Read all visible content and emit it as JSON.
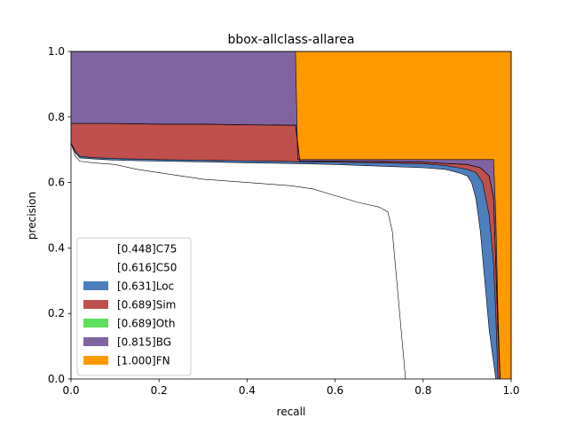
{
  "chart_data": {
    "type": "area",
    "title": "bbox-allclass-allarea",
    "xlabel": "recall",
    "ylabel": "precision",
    "xlim": [
      0,
      1
    ],
    "ylim": [
      0,
      1
    ],
    "x_ticks": [
      "0.0",
      "0.2",
      "0.4",
      "0.6",
      "0.8",
      "1.0"
    ],
    "y_ticks": [
      "0.0",
      "0.2",
      "0.4",
      "0.6",
      "0.8",
      "1.0"
    ],
    "grid": false,
    "legend_position": "lower-left",
    "series": [
      {
        "name": "[0.448]C75",
        "color": "#ffffff",
        "points": [
          [
            0.0,
            0.72
          ],
          [
            0.01,
            0.68
          ],
          [
            0.02,
            0.665
          ],
          [
            0.05,
            0.66
          ],
          [
            0.1,
            0.655
          ],
          [
            0.15,
            0.64
          ],
          [
            0.2,
            0.63
          ],
          [
            0.3,
            0.61
          ],
          [
            0.4,
            0.6
          ],
          [
            0.5,
            0.59
          ],
          [
            0.55,
            0.58
          ],
          [
            0.6,
            0.56
          ],
          [
            0.65,
            0.54
          ],
          [
            0.7,
            0.525
          ],
          [
            0.72,
            0.51
          ],
          [
            0.73,
            0.45
          ],
          [
            0.74,
            0.3
          ],
          [
            0.75,
            0.15
          ],
          [
            0.76,
            0.0
          ]
        ]
      },
      {
        "name": "[0.616]C50",
        "color": "#ffffff",
        "points": [
          [
            0.0,
            0.72
          ],
          [
            0.01,
            0.69
          ],
          [
            0.02,
            0.675
          ],
          [
            0.05,
            0.672
          ],
          [
            0.1,
            0.668
          ],
          [
            0.2,
            0.665
          ],
          [
            0.3,
            0.663
          ],
          [
            0.4,
            0.66
          ],
          [
            0.5,
            0.658
          ],
          [
            0.6,
            0.655
          ],
          [
            0.7,
            0.65
          ],
          [
            0.8,
            0.645
          ],
          [
            0.85,
            0.64
          ],
          [
            0.88,
            0.63
          ],
          [
            0.9,
            0.62
          ],
          [
            0.91,
            0.6
          ],
          [
            0.92,
            0.55
          ],
          [
            0.93,
            0.45
          ],
          [
            0.94,
            0.3
          ],
          [
            0.95,
            0.15
          ],
          [
            0.96,
            0.05
          ],
          [
            0.965,
            0.0
          ]
        ]
      },
      {
        "name": "[0.631]Loc",
        "color": "#4c7fbe",
        "points": [
          [
            0.0,
            0.72
          ],
          [
            0.01,
            0.695
          ],
          [
            0.02,
            0.68
          ],
          [
            0.05,
            0.676
          ],
          [
            0.1,
            0.673
          ],
          [
            0.2,
            0.67
          ],
          [
            0.3,
            0.668
          ],
          [
            0.4,
            0.666
          ],
          [
            0.5,
            0.664
          ],
          [
            0.52,
            0.663
          ],
          [
            0.6,
            0.662
          ],
          [
            0.7,
            0.66
          ],
          [
            0.8,
            0.657
          ],
          [
            0.85,
            0.652
          ],
          [
            0.88,
            0.645
          ],
          [
            0.9,
            0.64
          ],
          [
            0.92,
            0.63
          ],
          [
            0.935,
            0.6
          ],
          [
            0.95,
            0.5
          ],
          [
            0.96,
            0.35
          ],
          [
            0.965,
            0.2
          ],
          [
            0.97,
            0.0
          ]
        ]
      },
      {
        "name": "[0.689]Sim",
        "color": "#c0504d",
        "points": [
          [
            0.0,
            0.78
          ],
          [
            0.1,
            0.78
          ],
          [
            0.2,
            0.778
          ],
          [
            0.3,
            0.778
          ],
          [
            0.4,
            0.776
          ],
          [
            0.51,
            0.775
          ],
          [
            0.52,
            0.665
          ],
          [
            0.6,
            0.665
          ],
          [
            0.7,
            0.664
          ],
          [
            0.8,
            0.662
          ],
          [
            0.85,
            0.658
          ],
          [
            0.9,
            0.655
          ],
          [
            0.93,
            0.645
          ],
          [
            0.95,
            0.62
          ],
          [
            0.96,
            0.55
          ],
          [
            0.965,
            0.35
          ],
          [
            0.97,
            0.15
          ],
          [
            0.975,
            0.0
          ]
        ]
      },
      {
        "name": "[0.689]Oth",
        "color": "#5ce05c",
        "points": [
          [
            0.0,
            0.78
          ],
          [
            0.1,
            0.78
          ],
          [
            0.2,
            0.778
          ],
          [
            0.3,
            0.778
          ],
          [
            0.4,
            0.776
          ],
          [
            0.51,
            0.775
          ],
          [
            0.52,
            0.665
          ],
          [
            0.6,
            0.665
          ],
          [
            0.7,
            0.664
          ],
          [
            0.8,
            0.662
          ],
          [
            0.85,
            0.658
          ],
          [
            0.9,
            0.655
          ],
          [
            0.93,
            0.645
          ],
          [
            0.95,
            0.62
          ],
          [
            0.96,
            0.55
          ],
          [
            0.965,
            0.35
          ],
          [
            0.97,
            0.15
          ],
          [
            0.975,
            0.0
          ]
        ]
      },
      {
        "name": "[0.815]BG",
        "color": "#8064a2",
        "points": [
          [
            0.0,
            1.0
          ],
          [
            0.51,
            1.0
          ],
          [
            0.515,
            0.67
          ],
          [
            0.6,
            0.67
          ],
          [
            0.7,
            0.67
          ],
          [
            0.8,
            0.67
          ],
          [
            0.9,
            0.67
          ],
          [
            0.96,
            0.67
          ],
          [
            0.965,
            0.5
          ],
          [
            0.97,
            0.2
          ],
          [
            0.975,
            0.0
          ]
        ]
      },
      {
        "name": "[1.000]FN",
        "color": "#ff9900",
        "points": [
          [
            0.0,
            1.0
          ],
          [
            1.0,
            1.0
          ],
          [
            1.0,
            0.0
          ]
        ]
      }
    ]
  }
}
